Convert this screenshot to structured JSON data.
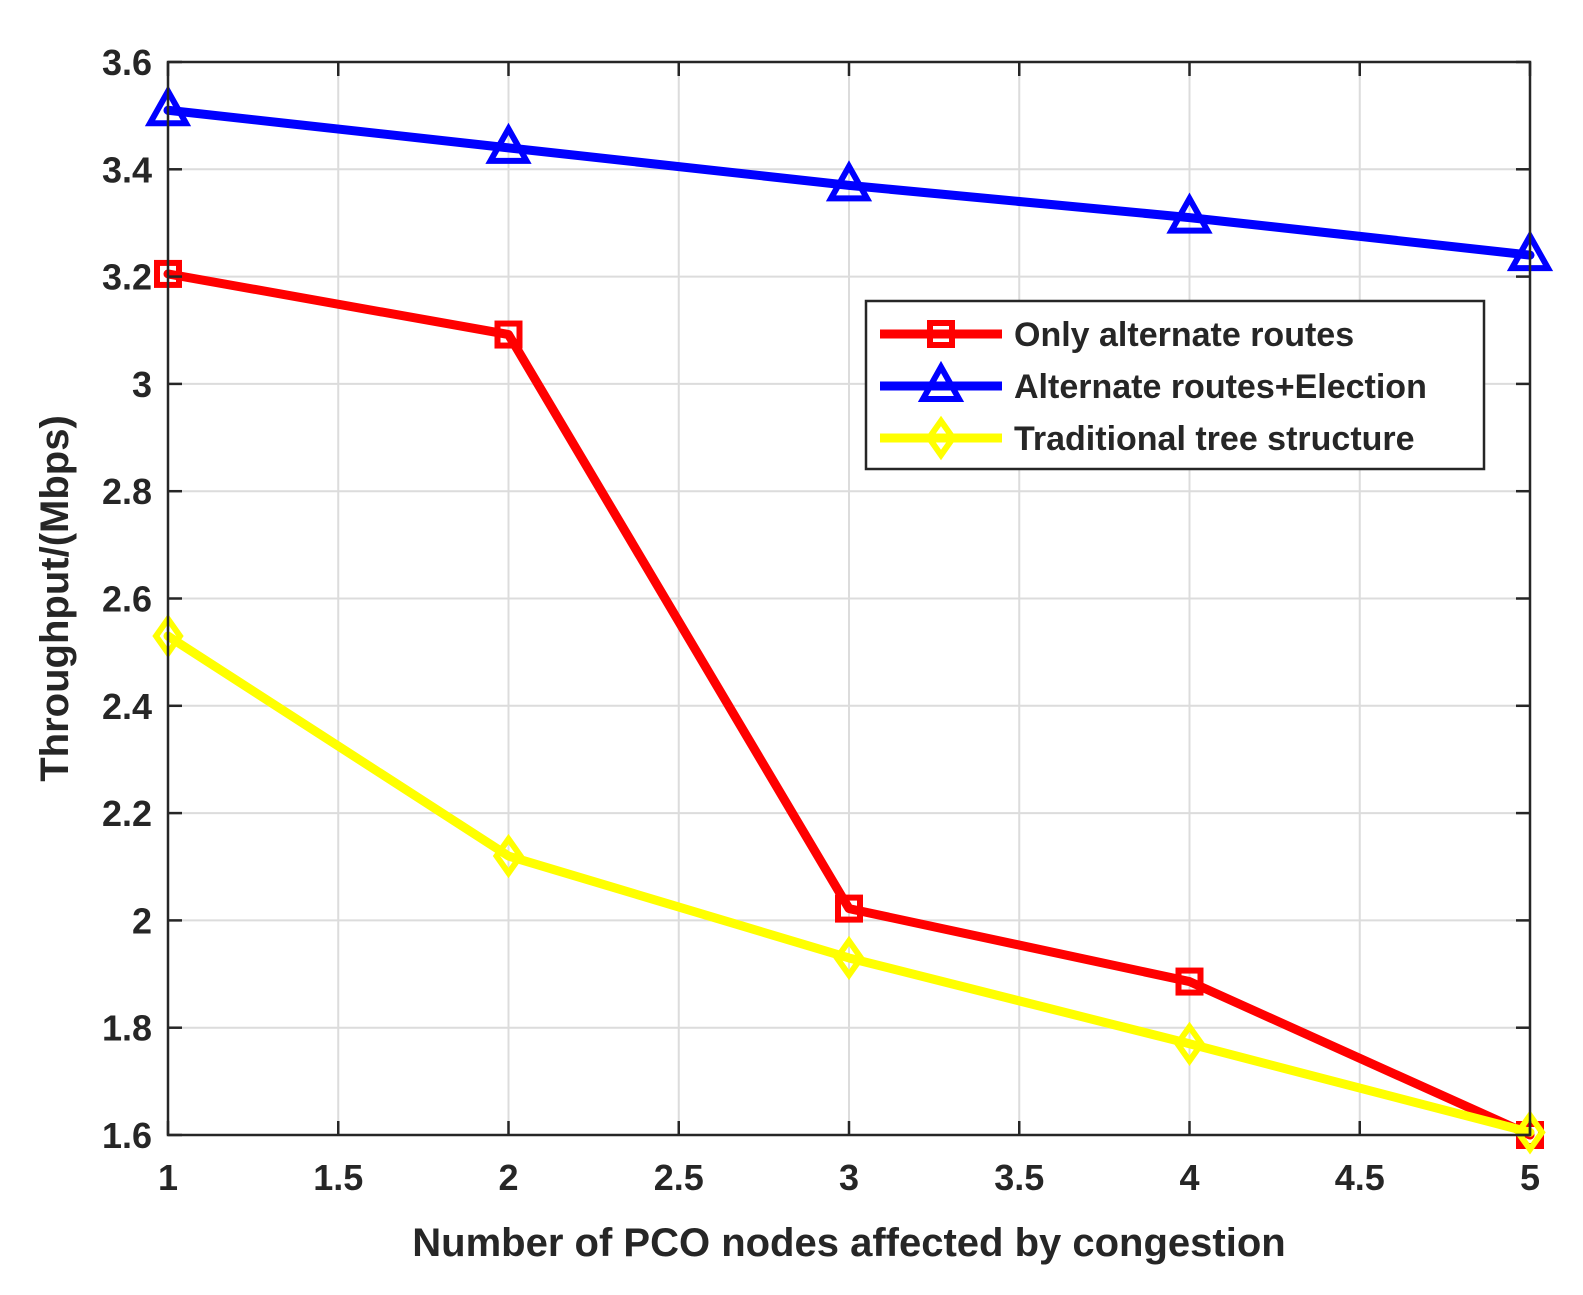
{
  "chart_data": {
    "type": "line",
    "title": "",
    "xlabel": "Number of PCO nodes affected by congestion",
    "ylabel": "Throughput/(Mbps)",
    "xlim": [
      1,
      5
    ],
    "ylim": [
      1.6,
      3.6
    ],
    "xticks": [
      1,
      1.5,
      2,
      2.5,
      3,
      3.5,
      4,
      4.5,
      5
    ],
    "xtick_labels": [
      "1",
      "1.5",
      "2",
      "2.5",
      "3",
      "3.5",
      "4",
      "4.5",
      "5"
    ],
    "yticks": [
      1.6,
      1.8,
      2.0,
      2.2,
      2.4,
      2.6,
      2.8,
      3.0,
      3.2,
      3.4,
      3.6
    ],
    "ytick_labels": [
      "1.6",
      "1.8",
      "2",
      "2.2",
      "2.4",
      "2.6",
      "2.8",
      "3",
      "3.2",
      "3.4",
      "3.6"
    ],
    "grid": true,
    "legend_position": "upper-right",
    "x": [
      1,
      2,
      3,
      4,
      5
    ],
    "series": [
      {
        "name": "Only alternate routes",
        "color": "#ff0000",
        "marker": "square",
        "values": [
          3.205,
          3.092,
          2.022,
          1.886,
          1.6
        ]
      },
      {
        "name": "Alternate routes+Election",
        "color": "#0000ff",
        "marker": "triangle",
        "values": [
          3.51,
          3.44,
          3.37,
          3.31,
          3.24
        ]
      },
      {
        "name": "Traditional tree structure",
        "color": "#ffff00",
        "marker": "diamond",
        "values": [
          2.53,
          2.12,
          1.93,
          1.77,
          1.605
        ]
      }
    ]
  }
}
